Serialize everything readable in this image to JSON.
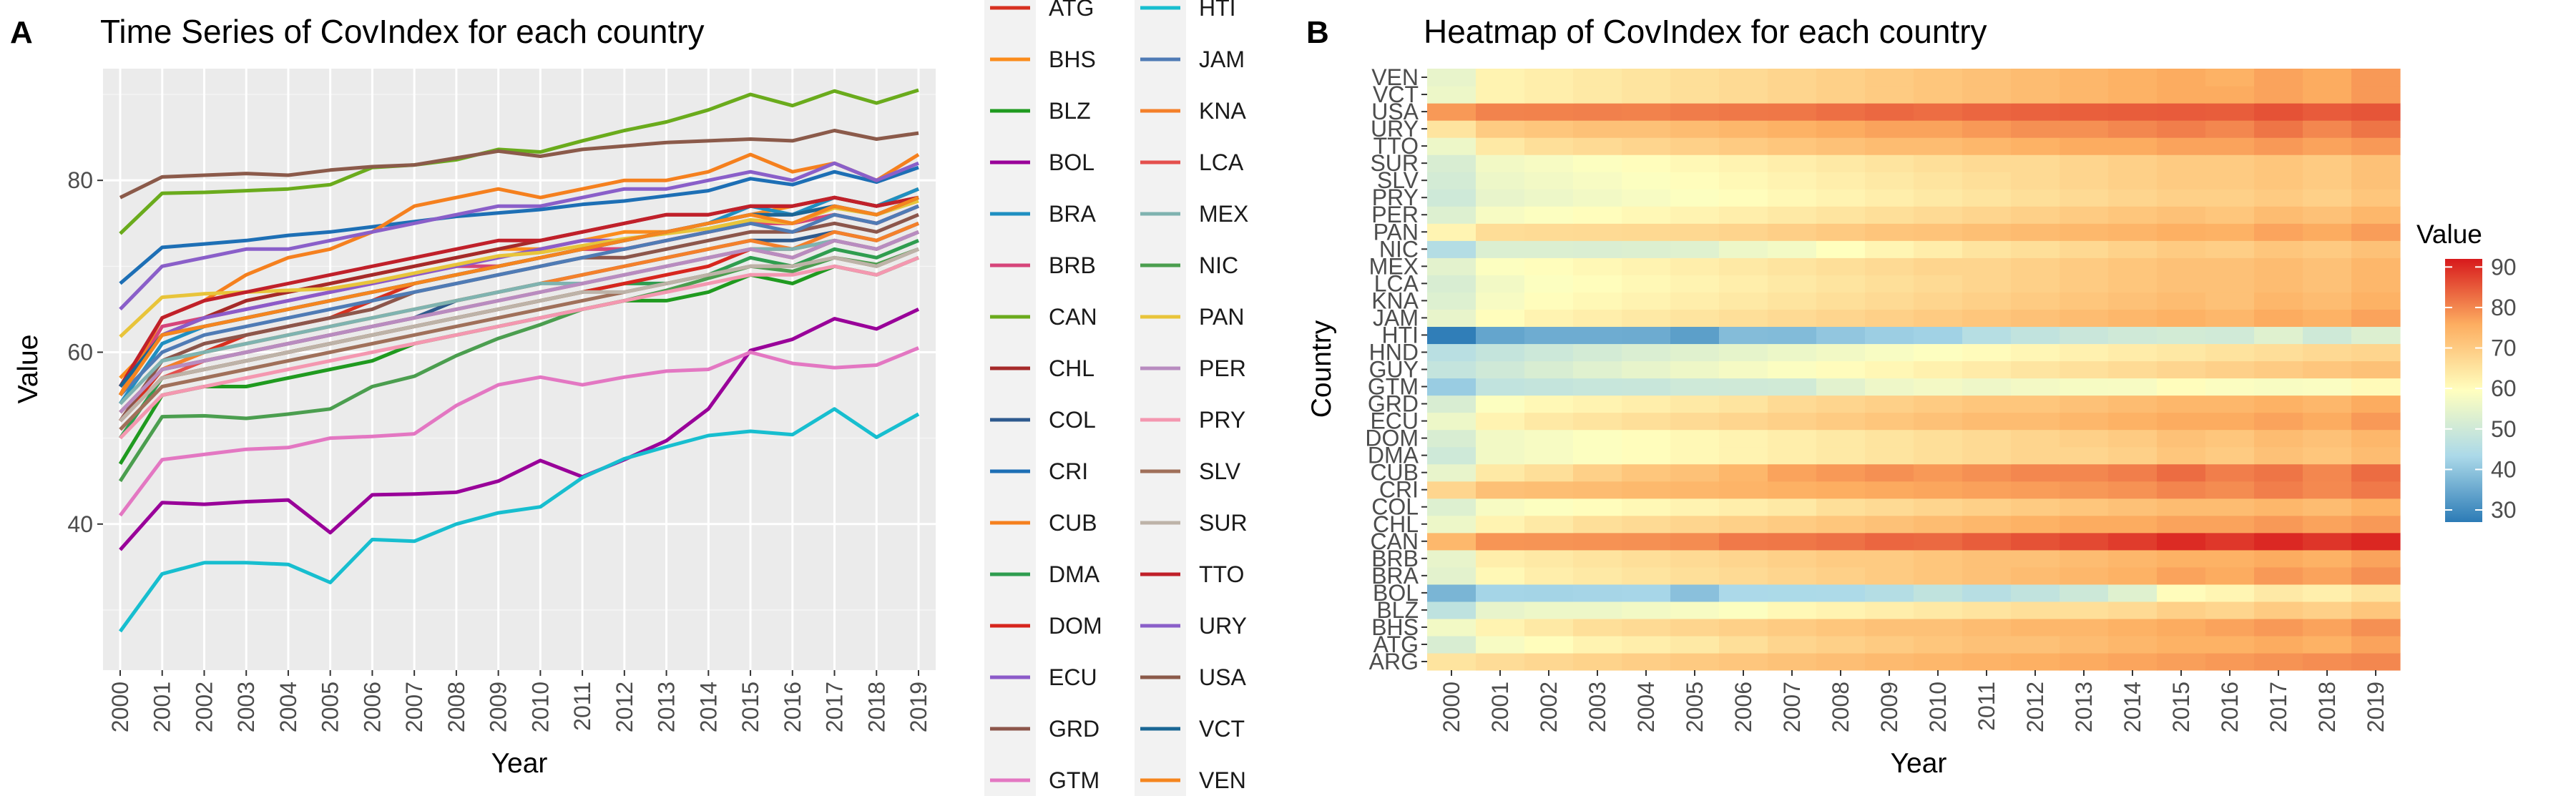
{
  "chart_data": [
    {
      "panel": "A",
      "type": "line",
      "title": "Time Series of CovIndex for each country",
      "xlabel": "Year",
      "ylabel": "Value",
      "ylim": [
        23,
        93
      ],
      "yticks": [
        40,
        60,
        80
      ],
      "x": [
        2000,
        2001,
        2002,
        2003,
        2004,
        2005,
        2006,
        2007,
        2008,
        2009,
        2010,
        2011,
        2012,
        2013,
        2014,
        2015,
        2016,
        2017,
        2018,
        2019
      ],
      "grid": true,
      "legend": "right",
      "series": [
        {
          "name": "ATG",
          "color": "#d7301f",
          "values": [
            52,
            58,
            60,
            62,
            63,
            64,
            66,
            68,
            69,
            70,
            71,
            72,
            72,
            73,
            74,
            75,
            75,
            76,
            75,
            77
          ]
        },
        {
          "name": "BHS",
          "color": "#fb8c1c",
          "values": [
            57,
            62,
            64,
            66,
            67,
            68,
            69,
            70,
            71,
            72,
            72,
            73,
            74,
            74,
            75,
            76,
            77,
            78,
            77,
            79
          ]
        },
        {
          "name": "BLZ",
          "color": "#1f9a1f",
          "values": [
            47,
            55,
            56,
            56,
            57,
            58,
            59,
            61,
            62,
            63,
            64,
            65,
            66,
            66,
            67,
            69,
            68,
            70,
            69,
            71
          ]
        },
        {
          "name": "BOL",
          "color": "#990099",
          "values": [
            37,
            42.5,
            42.3,
            42.6,
            42.8,
            39,
            43.4,
            43.5,
            43.7,
            45,
            47.4,
            45.5,
            47.5,
            49.7,
            53.4,
            60.2,
            61.5,
            63.9,
            62.7,
            65
          ]
        },
        {
          "name": "BRA",
          "color": "#1f8fc1",
          "values": [
            54,
            61,
            63,
            64,
            65,
            66,
            67,
            68,
            69,
            70,
            71,
            72,
            73,
            74,
            75,
            77,
            76,
            78,
            77,
            79
          ]
        },
        {
          "name": "BRB",
          "color": "#d6457a",
          "values": [
            55,
            63,
            64,
            65,
            66,
            67,
            68,
            69,
            70,
            70,
            71,
            72,
            72,
            73,
            74,
            75,
            75,
            76,
            75,
            77
          ]
        },
        {
          "name": "CAN",
          "color": "#6aab1c",
          "values": [
            73.8,
            78.5,
            78.6,
            78.8,
            79,
            79.5,
            81.5,
            81.8,
            82.4,
            83.6,
            83.3,
            84.6,
            85.8,
            86.8,
            88.2,
            90,
            88.7,
            90.4,
            89,
            90.5
          ]
        },
        {
          "name": "CHL",
          "color": "#a52a2a",
          "values": [
            56,
            62,
            64,
            66,
            67,
            68,
            69,
            70,
            71,
            72,
            73,
            74,
            75,
            76,
            76,
            77,
            77,
            78,
            77,
            78
          ]
        },
        {
          "name": "COL",
          "color": "#2e5a8e",
          "values": [
            53,
            58,
            59,
            60,
            61,
            62,
            63,
            64,
            66,
            67,
            68,
            69,
            70,
            71,
            72,
            73,
            73,
            74,
            73,
            75
          ]
        },
        {
          "name": "CRI",
          "color": "#1d6fb5",
          "values": [
            68,
            72.2,
            72.6,
            73,
            73.6,
            74,
            74.6,
            75.2,
            75.8,
            76.2,
            76.6,
            77.2,
            77.6,
            78.2,
            78.8,
            80.2,
            79.5,
            81,
            79.8,
            81.5
          ]
        },
        {
          "name": "CUB",
          "color": "#f5801e",
          "values": [
            55,
            64,
            66,
            69,
            71,
            72,
            74,
            77,
            78,
            79,
            78,
            79,
            80,
            80,
            81,
            83,
            81,
            82,
            80,
            83
          ]
        },
        {
          "name": "DMA",
          "color": "#2f9d4f",
          "values": [
            50,
            57,
            58,
            59,
            60,
            61,
            62,
            63,
            64,
            65,
            66,
            67,
            68,
            68,
            69,
            71,
            70,
            72,
            71,
            73
          ]
        },
        {
          "name": "DOM",
          "color": "#d7261e",
          "values": [
            52,
            57,
            58,
            59,
            60,
            61,
            62,
            63,
            64,
            65,
            66,
            67,
            68,
            69,
            70,
            72,
            71,
            73,
            72,
            74
          ]
        },
        {
          "name": "ECU",
          "color": "#8c5bc9",
          "values": [
            56,
            62,
            64,
            65,
            66,
            67,
            68,
            69,
            70,
            71,
            72,
            73,
            73,
            74,
            75,
            76,
            76,
            77,
            76,
            78
          ]
        },
        {
          "name": "GRD",
          "color": "#8c564b",
          "values": [
            52,
            59,
            61,
            62,
            63,
            64,
            65,
            67,
            68,
            69,
            70,
            71,
            71,
            72,
            73,
            74,
            74,
            75,
            74,
            76
          ]
        },
        {
          "name": "GTM",
          "color": "#e377c2",
          "values": [
            41,
            47.5,
            48.1,
            48.7,
            48.9,
            50,
            50.2,
            50.5,
            53.8,
            56.2,
            57.1,
            56.2,
            57.1,
            57.8,
            58,
            60,
            58.7,
            58.2,
            58.5,
            60.5
          ]
        },
        {
          "name": "HTI",
          "color": "#17becf",
          "values": [
            27.5,
            34.2,
            35.5,
            35.5,
            35.3,
            33.2,
            38.2,
            38,
            40,
            41.3,
            42,
            45.4,
            47.6,
            49,
            50.3,
            50.8,
            50.4,
            53.4,
            50.1,
            52.8
          ]
        },
        {
          "name": "JAM",
          "color": "#4f7bb5",
          "values": [
            55,
            60,
            62,
            63,
            64,
            65,
            66,
            67,
            68,
            69,
            70,
            71,
            72,
            73,
            74,
            75,
            74,
            76,
            75,
            77
          ]
        },
        {
          "name": "KNA",
          "color": "#f4802a",
          "values": [
            53,
            58,
            60,
            61,
            62,
            63,
            64,
            65,
            66,
            67,
            68,
            69,
            70,
            71,
            72,
            73,
            72,
            74,
            73,
            75
          ]
        },
        {
          "name": "LCA",
          "color": "#e4504d",
          "values": [
            52,
            57,
            59,
            60,
            61,
            62,
            63,
            64,
            65,
            66,
            67,
            68,
            69,
            70,
            71,
            72,
            72,
            73,
            72,
            74
          ]
        },
        {
          "name": "MEX",
          "color": "#7fb3b0",
          "values": [
            54,
            59,
            60,
            61,
            62,
            63,
            64,
            65,
            66,
            67,
            68,
            68,
            69,
            70,
            71,
            72,
            72,
            73,
            72,
            74
          ]
        },
        {
          "name": "NIC",
          "color": "#4b9e4f",
          "values": [
            45,
            52.5,
            52.6,
            52.3,
            52.8,
            53.4,
            56,
            57.2,
            59.6,
            61.6,
            63.2,
            65,
            66,
            67.2,
            68.6,
            70,
            69.4,
            71,
            70.2,
            72
          ]
        },
        {
          "name": "PAN",
          "color": "#e8c43a",
          "values": [
            61.8,
            66.4,
            66.8,
            67,
            67.2,
            67.4,
            68.2,
            69.2,
            70.2,
            71.2,
            71.6,
            72.4,
            73.2,
            73.8,
            74.4,
            75.4,
            75,
            76.8,
            76,
            77.6
          ]
        },
        {
          "name": "PER",
          "color": "#b88cc0",
          "values": [
            53,
            58,
            59,
            60,
            61,
            62,
            63,
            64,
            65,
            66,
            67,
            68,
            69,
            70,
            71,
            72,
            71,
            73,
            72,
            74
          ]
        },
        {
          "name": "PRY",
          "color": "#f497b0",
          "values": [
            50,
            55,
            56,
            57,
            58,
            59,
            60,
            61,
            62,
            63,
            64,
            65,
            66,
            67,
            68,
            69,
            69,
            70,
            69,
            71
          ]
        },
        {
          "name": "SLV",
          "color": "#a0705a",
          "values": [
            51,
            56,
            57,
            58,
            59,
            60,
            61,
            62,
            63,
            64,
            65,
            66,
            67,
            68,
            69,
            70,
            70,
            71,
            70,
            72
          ]
        },
        {
          "name": "SUR",
          "color": "#bdb3a8",
          "values": [
            52,
            57,
            58,
            59,
            60,
            61,
            62,
            63,
            64,
            65,
            66,
            67,
            67,
            68,
            69,
            70,
            70,
            71,
            70,
            72
          ]
        },
        {
          "name": "TTO",
          "color": "#c0202a",
          "values": [
            56,
            64,
            66,
            67,
            68,
            69,
            70,
            71,
            72,
            73,
            73,
            74,
            75,
            76,
            76,
            77,
            77,
            78,
            77,
            78
          ]
        },
        {
          "name": "URY",
          "color": "#8a5fc9",
          "values": [
            65,
            70,
            71,
            72,
            72,
            73,
            74,
            75,
            76,
            77,
            77,
            78,
            79,
            79,
            80,
            81,
            80,
            82,
            80,
            82
          ]
        },
        {
          "name": "USA",
          "color": "#8b5a4a",
          "values": [
            78,
            80.4,
            80.6,
            80.8,
            80.6,
            81.2,
            81.6,
            81.8,
            82.6,
            83.4,
            82.8,
            83.6,
            84,
            84.4,
            84.6,
            84.8,
            84.6,
            85.8,
            84.8,
            85.5
          ]
        },
        {
          "name": "VCT",
          "color": "#1a6694",
          "values": [
            56,
            62,
            63,
            64,
            65,
            66,
            67,
            68,
            69,
            70,
            71,
            72,
            73,
            74,
            75,
            76,
            76,
            77,
            76,
            78
          ]
        },
        {
          "name": "VEN",
          "color": "#f5851e",
          "values": [
            55,
            62,
            63,
            64,
            65,
            66,
            67,
            68,
            69,
            70,
            71,
            72,
            73,
            74,
            75,
            76,
            75,
            77,
            76,
            78
          ]
        }
      ]
    },
    {
      "panel": "B",
      "type": "heatmap",
      "title": "Heatmap of CovIndex for each country",
      "xlabel": "Year",
      "ylabel": "Country",
      "x": [
        2000,
        2001,
        2002,
        2003,
        2004,
        2005,
        2006,
        2007,
        2008,
        2009,
        2010,
        2011,
        2012,
        2013,
        2014,
        2015,
        2016,
        2017,
        2018,
        2019
      ],
      "y": [
        "ARG",
        "ATG",
        "BHS",
        "BLZ",
        "BOL",
        "BRA",
        "BRB",
        "CAN",
        "CHL",
        "COL",
        "CRI",
        "CUB",
        "DMA",
        "DOM",
        "ECU",
        "GRD",
        "GTM",
        "GUY",
        "HND",
        "HTI",
        "JAM",
        "KNA",
        "LCA",
        "MEX",
        "NIC",
        "PAN",
        "PER",
        "PRY",
        "SLV",
        "SUR",
        "TTO",
        "URY",
        "USA",
        "VCT",
        "VEN"
      ],
      "color_scale": {
        "name": "Value",
        "min": 27,
        "max": 92,
        "ticks": [
          30,
          40,
          50,
          60,
          70,
          80,
          90
        ],
        "low": "#2c7bb6",
        "mid": "#ffffbf",
        "high": "#d7191c"
      },
      "legend": "right",
      "rows": {
        "ARG": {
          "start": 65,
          "end": 80
        },
        "ATG": {
          "start": 52,
          "end": 77
        },
        "BHS": {
          "start": 57,
          "end": 79
        },
        "BLZ": {
          "start": 47,
          "end": 71
        },
        "BOL": {
          "start": 37,
          "end": 65
        },
        "BRA": {
          "start": 54,
          "end": 79
        },
        "BRB": {
          "start": 55,
          "end": 77
        },
        "CAN": {
          "start": 73.8,
          "end": 90.5
        },
        "CHL": {
          "start": 56,
          "end": 78
        },
        "COL": {
          "start": 53,
          "end": 75
        },
        "CRI": {
          "start": 68,
          "end": 81.5
        },
        "CUB": {
          "start": 55,
          "end": 83
        },
        "DMA": {
          "start": 50,
          "end": 73
        },
        "DOM": {
          "start": 52,
          "end": 74
        },
        "ECU": {
          "start": 56,
          "end": 78
        },
        "GRD": {
          "start": 52,
          "end": 76
        },
        "GTM": {
          "start": 41,
          "end": 60.5
        },
        "GUY": {
          "start": 48,
          "end": 72
        },
        "HND": {
          "start": 46,
          "end": 68
        },
        "HTI": {
          "start": 27.5,
          "end": 52.8
        },
        "JAM": {
          "start": 55,
          "end": 77
        },
        "KNA": {
          "start": 53,
          "end": 75
        },
        "LCA": {
          "start": 52,
          "end": 74
        },
        "MEX": {
          "start": 54,
          "end": 74
        },
        "NIC": {
          "start": 45,
          "end": 72
        },
        "PAN": {
          "start": 61.8,
          "end": 77.6
        },
        "PER": {
          "start": 53,
          "end": 74
        },
        "PRY": {
          "start": 50,
          "end": 71
        },
        "SLV": {
          "start": 51,
          "end": 72
        },
        "SUR": {
          "start": 52,
          "end": 72
        },
        "TTO": {
          "start": 56,
          "end": 78
        },
        "URY": {
          "start": 65,
          "end": 82
        },
        "USA": {
          "start": 78,
          "end": 85.5
        },
        "VCT": {
          "start": 56,
          "end": 78
        },
        "VEN": {
          "start": 55,
          "end": 78
        }
      }
    }
  ]
}
